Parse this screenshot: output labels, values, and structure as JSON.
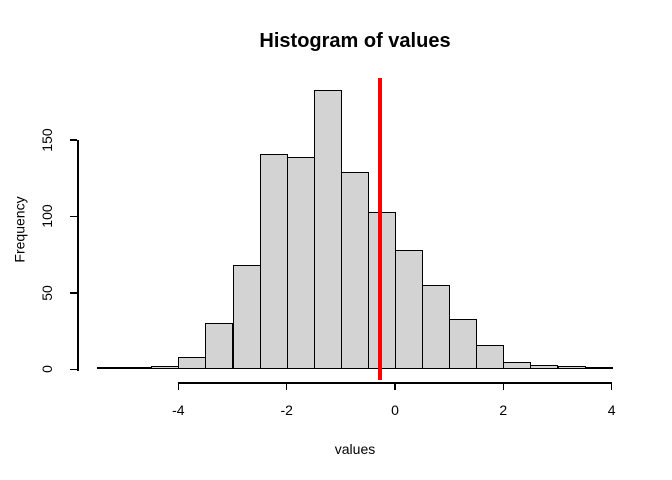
{
  "chart_data": {
    "type": "bar",
    "variant": "histogram",
    "title": "Histogram of values",
    "xlabel": "values",
    "ylabel": "Frequency",
    "bin_width": 0.5,
    "bin_edges": [
      -5.5,
      -5.0,
      -4.5,
      -4.0,
      -3.5,
      -3.0,
      -2.5,
      -2.0,
      -1.5,
      -1.0,
      -0.5,
      0.0,
      0.5,
      1.0,
      1.5,
      2.0,
      2.5,
      3.0,
      3.5,
      4.0
    ],
    "counts": [
      1,
      1,
      2,
      8,
      30,
      68,
      141,
      139,
      183,
      129,
      103,
      78,
      55,
      33,
      16,
      5,
      3,
      2,
      1
    ],
    "x_ticks": [
      -4,
      -2,
      0,
      2,
      4
    ],
    "y_ticks": [
      0,
      50,
      100,
      150
    ],
    "xlim": [
      -5.88,
      4.38
    ],
    "ylim": [
      -7.3,
      190.6
    ],
    "grid": false,
    "legend": "none",
    "ref_line": {
      "orientation": "vertical",
      "x": -0.28,
      "color": "#ff0000"
    },
    "colors": {
      "bar_fill": "#d3d3d3",
      "bar_border": "#000000",
      "axis": "#000000",
      "text": "#000000",
      "background": "#ffffff"
    }
  }
}
